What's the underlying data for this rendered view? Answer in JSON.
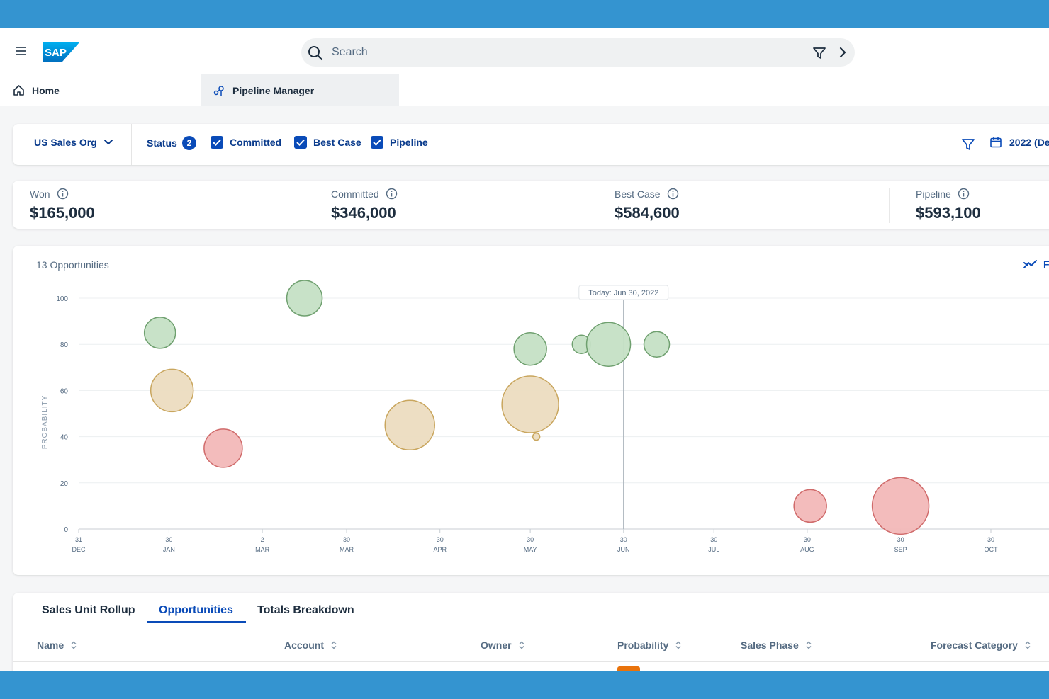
{
  "shell": {
    "logo_text": "SAP",
    "search_placeholder": "Search",
    "brand_color": "#0a4bb8"
  },
  "tabs": {
    "home_label": "Home",
    "pipeline_label": "Pipeline Manager"
  },
  "filters": {
    "org": "US Sales Org",
    "status_label": "Status",
    "status_count": "2",
    "checkboxes": [
      {
        "label": "Committed",
        "checked": true
      },
      {
        "label": "Best Case",
        "checked": true
      },
      {
        "label": "Pipeline",
        "checked": true
      }
    ],
    "date_label": "2022 (De"
  },
  "kpis": [
    {
      "label": "Won",
      "value": "$165,000"
    },
    {
      "label": "Committed",
      "value": "$346,000"
    },
    {
      "label": "Best Case",
      "value": "$584,600"
    },
    {
      "label": "Pipeline",
      "value": "$593,100"
    }
  ],
  "chart": {
    "count_label": "13 Opportunities",
    "tool_label": "F"
  },
  "chart_data": {
    "type": "scatter",
    "title": "",
    "ylabel": "PROBABILITY",
    "ylim": [
      0,
      100
    ],
    "y_ticks": [
      0,
      20,
      40,
      60,
      80,
      100
    ],
    "x_ticks": [
      {
        "day": "31",
        "month": "DEC",
        "date": "2021-12-31"
      },
      {
        "day": "30",
        "month": "JAN",
        "date": "2022-01-30"
      },
      {
        "day": "2",
        "month": "MAR",
        "date": "2022-03-02"
      },
      {
        "day": "30",
        "month": "MAR",
        "date": "2022-03-30"
      },
      {
        "day": "30",
        "month": "APR",
        "date": "2022-04-30"
      },
      {
        "day": "30",
        "month": "MAY",
        "date": "2022-05-30"
      },
      {
        "day": "30",
        "month": "JUN",
        "date": "2022-06-30"
      },
      {
        "day": "30",
        "month": "JUL",
        "date": "2022-07-30"
      },
      {
        "day": "30",
        "month": "AUG",
        "date": "2022-08-30"
      },
      {
        "day": "30",
        "month": "SEP",
        "date": "2022-09-30"
      },
      {
        "day": "30",
        "month": "OCT",
        "date": "2022-10-30"
      }
    ],
    "today_label": "Today: Jun 30, 2022",
    "today_date": "2022-06-30",
    "status_colors": {
      "won": {
        "fill": "#c5e0c5",
        "stroke": "#6fa06f"
      },
      "best": {
        "fill": "#ecdcc0",
        "stroke": "#c9a65e"
      },
      "lost": {
        "fill": "#f2b8b8",
        "stroke": "#d06b6b"
      }
    },
    "points": [
      {
        "date": "2022-01-27",
        "probability": 85,
        "size": 22,
        "status": "won"
      },
      {
        "date": "2022-01-31",
        "probability": 60,
        "size": 30,
        "status": "best"
      },
      {
        "date": "2022-02-17",
        "probability": 35,
        "size": 27,
        "status": "lost"
      },
      {
        "date": "2022-03-16",
        "probability": 100,
        "size": 25,
        "status": "won"
      },
      {
        "date": "2022-04-20",
        "probability": 45,
        "size": 35,
        "status": "best"
      },
      {
        "date": "2022-05-30",
        "probability": 78,
        "size": 23,
        "status": "won"
      },
      {
        "date": "2022-05-30",
        "probability": 54,
        "size": 40,
        "status": "best"
      },
      {
        "date": "2022-06-01",
        "probability": 40,
        "size": 5,
        "status": "best"
      },
      {
        "date": "2022-06-16",
        "probability": 80,
        "size": 13,
        "status": "won"
      },
      {
        "date": "2022-06-25",
        "probability": 80,
        "size": 31,
        "status": "won"
      },
      {
        "date": "2022-07-11",
        "probability": 80,
        "size": 18,
        "status": "won"
      },
      {
        "date": "2022-08-31",
        "probability": 10,
        "size": 23,
        "status": "lost"
      },
      {
        "date": "2022-09-30",
        "probability": 10,
        "size": 40,
        "status": "lost"
      }
    ]
  },
  "table": {
    "tabs": [
      "Sales Unit Rollup",
      "Opportunities",
      "Totals Breakdown"
    ],
    "active_tab": "Opportunities",
    "columns": [
      "Name",
      "Account",
      "Owner",
      "Probability",
      "Sales Phase",
      "Forecast Category"
    ]
  }
}
